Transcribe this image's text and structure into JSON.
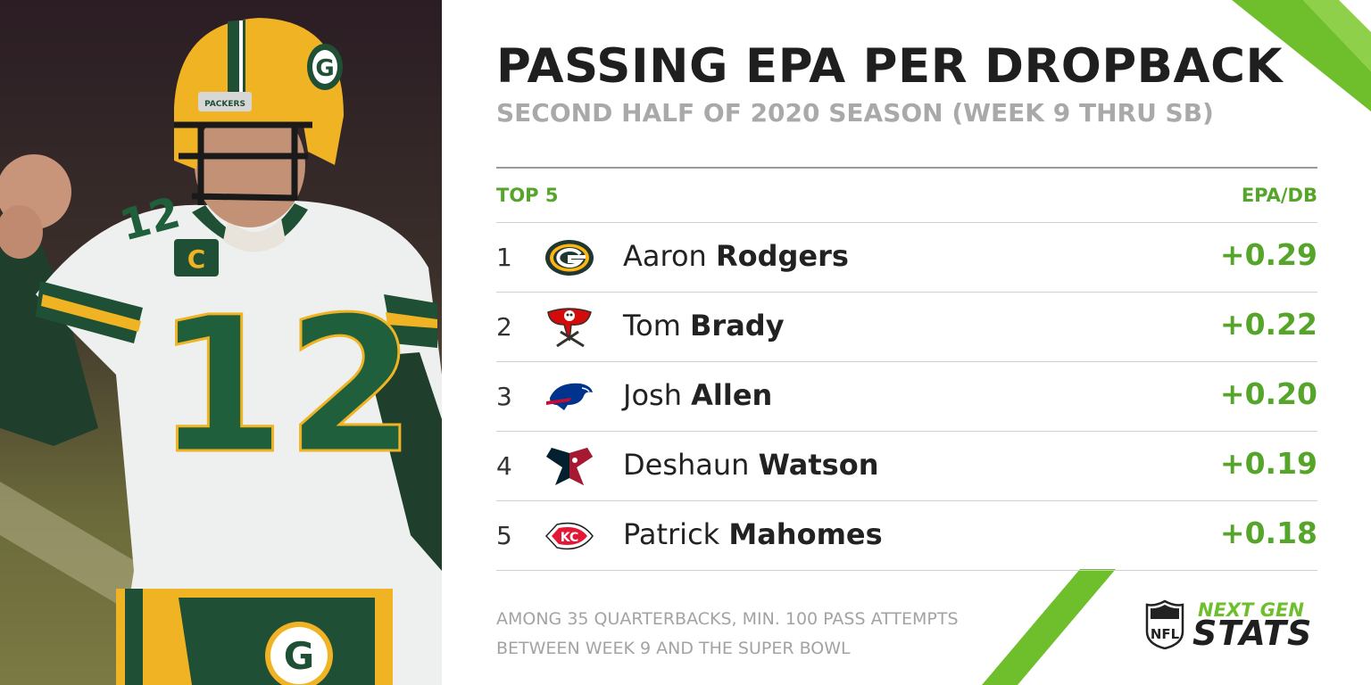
{
  "chart_data": {
    "type": "table",
    "title": "PASSING EPA PER DROPBACK",
    "subtitle": "SECOND HALF OF 2020 SEASON (WEEK 9 THRU SB)",
    "columns": [
      "TOP 5",
      "EPA/DB"
    ],
    "rows": [
      {
        "rank": "1",
        "team_icon": "packers-logo-icon",
        "first": "Aaron",
        "last": "Rodgers",
        "value": 0.29,
        "label": "+0.29"
      },
      {
        "rank": "2",
        "team_icon": "buccaneers-logo-icon",
        "first": "Tom",
        "last": "Brady",
        "value": 0.22,
        "label": "+0.22"
      },
      {
        "rank": "3",
        "team_icon": "bills-logo-icon",
        "first": "Josh",
        "last": "Allen",
        "value": 0.2,
        "label": "+0.20"
      },
      {
        "rank": "4",
        "team_icon": "texans-logo-icon",
        "first": "Deshaun",
        "last": "Watson",
        "value": 0.19,
        "label": "+0.19"
      },
      {
        "rank": "5",
        "team_icon": "chiefs-logo-icon",
        "first": "Patrick",
        "last": "Mahomes",
        "value": 0.18,
        "label": "+0.18"
      }
    ],
    "footnote": [
      "AMONG 35 QUARTERBACKS, MIN. 100 PASS ATTEMPTS",
      "BETWEEN WEEK 9 AND THE SUPER BOWL"
    ]
  },
  "branding": {
    "next": "NEXT GEN",
    "stats": "STATS",
    "shield_icon": "nfl-shield-icon",
    "shield_text": "NFL"
  },
  "photo": {
    "helmet_text": "PACKERS",
    "jersey_number": "12",
    "captain_patch": "C"
  },
  "colors": {
    "accent": "#56a52b",
    "title": "#1f1f1f",
    "subtitle": "#a9a9a9"
  }
}
